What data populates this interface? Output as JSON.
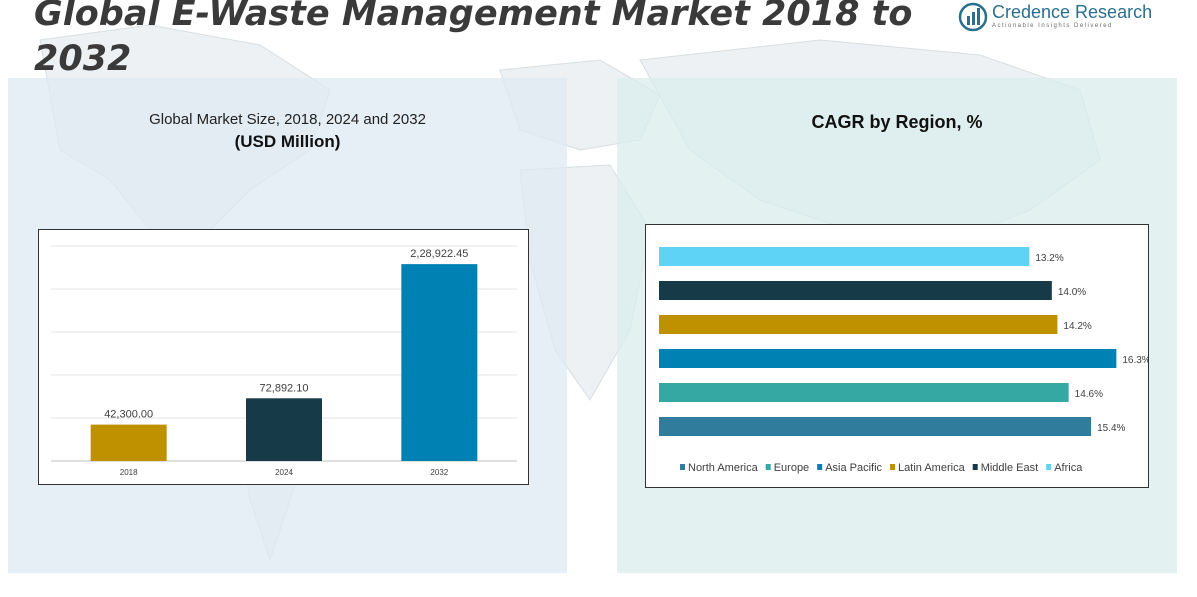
{
  "page": {
    "title": "Global E-Waste Management Market 2018 to 2032",
    "logo": {
      "name": "Credence Research",
      "tagline": "Actionable Insights Delivered"
    }
  },
  "chart_data": [
    {
      "type": "bar",
      "title": "Global Market Size, 2018, 2024 and 2032",
      "subtitle": "(USD Million)",
      "categories": [
        "2018",
        "2024",
        "2032"
      ],
      "values": [
        42300.0,
        72892.1,
        228922.45
      ],
      "data_labels": [
        "42,300.00",
        "72,892.10",
        "2,28,922.45"
      ],
      "colors": [
        "#bf9000",
        "#173a49",
        "#0081b4"
      ],
      "ylim": [
        0,
        250000
      ],
      "grid": true
    },
    {
      "type": "bar",
      "orientation": "horizontal",
      "title": "CAGR by Region, %",
      "series": [
        {
          "name": "North America",
          "value": 15.4,
          "label": "15.4%",
          "color": "#2f7c9c"
        },
        {
          "name": "Europe",
          "value": 14.6,
          "label": "14.6%",
          "color": "#36a8a4"
        },
        {
          "name": "Asia Pacific",
          "value": 16.3,
          "label": "16.3%",
          "color": "#0081b4"
        },
        {
          "name": "Latin America",
          "value": 14.2,
          "label": "14.2%",
          "color": "#bf9000"
        },
        {
          "name": "Middle East",
          "value": 14.0,
          "label": "14.0%",
          "color": "#173a49"
        },
        {
          "name": "Africa",
          "value": 13.2,
          "label": "13.2%",
          "color": "#5fd3f5"
        }
      ],
      "xlim": [
        0,
        17
      ],
      "legend": "bottom"
    }
  ]
}
